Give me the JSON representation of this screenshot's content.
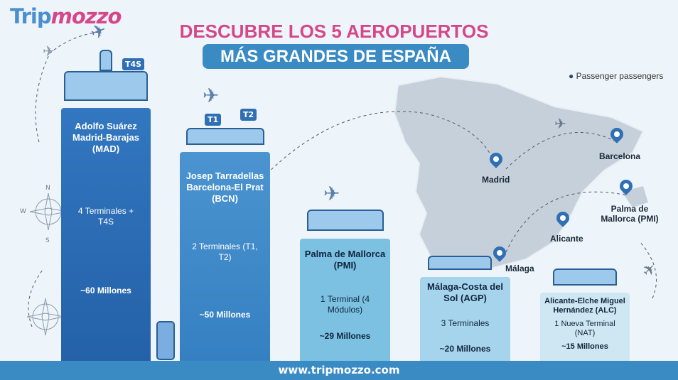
{
  "brand": {
    "part1": "Trip",
    "part2": "mozzo"
  },
  "title": {
    "line1": "DESCUBRE LOS 5 AEROPUERTOS",
    "line2": "MÁS GRANDES DE ESPAÑA"
  },
  "legend": {
    "icon": "person-icon",
    "label": "Passenger passengers"
  },
  "airports": [
    {
      "name": "Adolfo Suárez Madrid-Barajas (MAD)",
      "terminals": "4 Terminales + T4S",
      "passengers": "~60 Millones",
      "passengers_millions": 60,
      "color": "#2a6db5",
      "tag": "T4S"
    },
    {
      "name": "Josep Tarradellas Barcelona-El Prat (BCN)",
      "terminals": "2 Terminales (T1, T2)",
      "passengers": "~50 Millones",
      "passengers_millions": 50,
      "color": "#3b86c8",
      "tags": [
        "T1",
        "T2"
      ]
    },
    {
      "name": "Palma de Mallorca (PMI)",
      "terminals": "1 Terminal (4 Módulos)",
      "passengers": "~29 Millones",
      "passengers_millions": 29,
      "color": "#7cc0e2"
    },
    {
      "name": "Málaga-Costa del Sol (AGP)",
      "terminals": "3 Terminales",
      "passengers": "~20 Millones",
      "passengers_millions": 20,
      "color": "#a6d4ec"
    },
    {
      "name": "Alicante-Elche Miguel Hernández (ALC)",
      "terminals": "1 Nueva Terminal (NAT)",
      "passengers": "~15 Millones",
      "passengers_millions": 15,
      "color": "#cfe6f3"
    }
  ],
  "map": {
    "cities": [
      "Madrid",
      "Barcelona",
      "Palma de Mallorca (PMI)",
      "Alicante",
      "Málaga"
    ]
  },
  "compass": {
    "n": "N",
    "w": "W",
    "s": "S"
  },
  "footer": "www.tripmozzo.com"
}
